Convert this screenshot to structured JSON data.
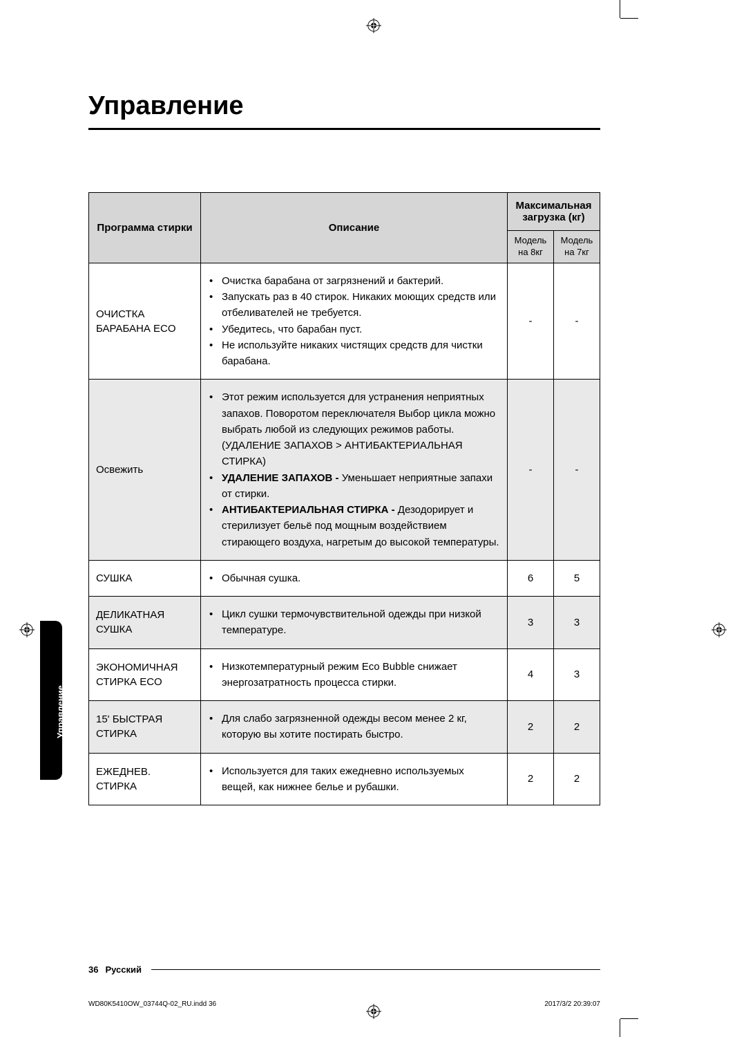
{
  "page": {
    "title": "Управление",
    "side_tab": "Управление",
    "page_number": "36",
    "language": "Русский",
    "imprint_left": "WD80K5410OW_03744Q-02_RU.indd   36",
    "imprint_right": "2017/3/2   20:39:07"
  },
  "table": {
    "headers": {
      "program": "Программа стирки",
      "description": "Описание",
      "max_load": "Максимальная загрузка (кг)",
      "model8": "Модель на 8кг",
      "model7": "Модель на 7кг"
    },
    "rows": [
      {
        "program": "ОЧИСТКА БАРАБАНА ECO",
        "shade": false,
        "items": [
          {
            "text": "Очистка барабана от загрязнений и бактерий."
          },
          {
            "text": "Запускать раз в 40 стирок. Никаких моющих средств или отбеливателей не требуется."
          },
          {
            "text": "Убедитесь, что барабан пуст."
          },
          {
            "text": "Не используйте никаких чистящих средств для чистки барабана."
          }
        ],
        "val8": "-",
        "val7": "-"
      },
      {
        "program": "Освежить",
        "shade": true,
        "items": [
          {
            "text": "Этот режим используется для устранения неприятных запахов. Поворотом переключателя Выбор цикла можно выбрать любой из следующих режимов работы.(УДАЛЕНИЕ ЗАПАХОВ > АНТИБАКТЕРИАЛЬНАЯ СТИРКА)"
          },
          {
            "bold_prefix": "УДАЛЕНИЕ ЗАПАХОВ - ",
            "text": "Уменьшает неприятные запахи от стирки."
          },
          {
            "bold_prefix": "АНТИБАКТЕРИАЛЬНАЯ СТИРКА - ",
            "text": "Дезодорирует и стерилизует бельё под мощным воздействием стирающего воздуха, нагретым до высокой температуры."
          }
        ],
        "val8": "-",
        "val7": "-"
      },
      {
        "program": "СУШКА",
        "shade": false,
        "items": [
          {
            "text": "Обычная сушка."
          }
        ],
        "val8": "6",
        "val7": "5"
      },
      {
        "program": "ДЕЛИКАТНАЯ СУШКА",
        "shade": true,
        "items": [
          {
            "text": "Цикл сушки термочувствительной одежды при низкой температуре."
          }
        ],
        "val8": "3",
        "val7": "3"
      },
      {
        "program": "ЭКОНОМИЧНАЯ СТИРКА ECO",
        "shade": false,
        "items": [
          {
            "text": "Низкотемпературный режим Eco Bubble снижает энергозатратность процесса стирки."
          }
        ],
        "val8": "4",
        "val7": "3"
      },
      {
        "program": "15' БЫСТРАЯ СТИРКА",
        "shade": true,
        "items": [
          {
            "text": "Для слабо загрязненной одежды весом менее 2 кг, которую вы хотите постирать быстро."
          }
        ],
        "val8": "2",
        "val7": "2"
      },
      {
        "program": "ЕЖЕДНЕВ. СТИРКА",
        "shade": false,
        "items": [
          {
            "text": "Используется для таких ежедневно используемых вещей, как нижнее белье и рубашки."
          }
        ],
        "val8": "2",
        "val7": "2"
      }
    ]
  }
}
